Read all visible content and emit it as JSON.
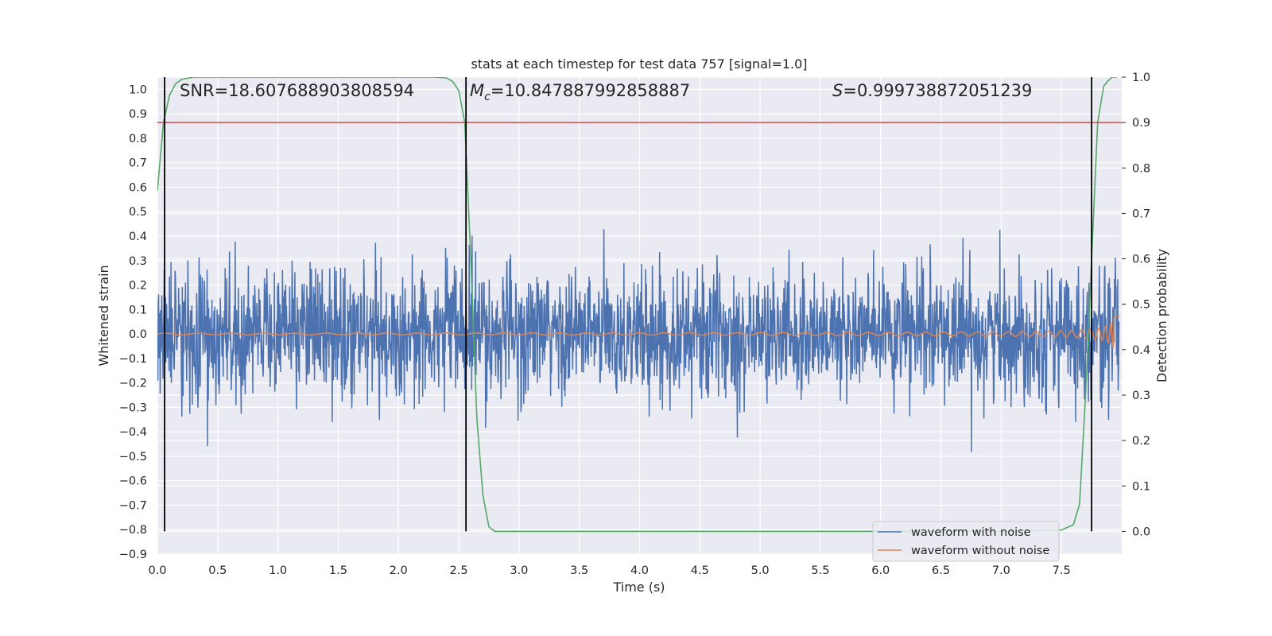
{
  "chart_data": {
    "type": "line",
    "title": "stats at each timestep for test data 757 [signal=1.0]",
    "xlabel": "Time (s)",
    "ylabel": "Whitened strain",
    "y2label": "Detection probability",
    "xlim": [
      0.0,
      8.0
    ],
    "ylim": [
      -0.9,
      1.05
    ],
    "y2lim": [
      -0.05,
      1.0
    ],
    "x_ticks": [
      "0.0",
      "0.5",
      "1.0",
      "1.5",
      "2.0",
      "2.5",
      "3.0",
      "3.5",
      "4.0",
      "4.5",
      "5.0",
      "5.5",
      "6.0",
      "6.5",
      "7.0",
      "7.5"
    ],
    "y_ticks": [
      "1.0",
      "0.9",
      "0.8",
      "0.7",
      "0.6",
      "0.5",
      "0.4",
      "0.3",
      "0.2",
      "0.1",
      "0.0",
      "−0.1",
      "−0.2",
      "−0.3",
      "−0.4",
      "−0.5",
      "−0.6",
      "−0.7",
      "−0.8",
      "−0.9"
    ],
    "y2_ticks": [
      "1.0",
      "0.9",
      "0.8",
      "0.7",
      "0.6",
      "0.5",
      "0.4",
      "0.3",
      "0.2",
      "0.1",
      "0.0"
    ],
    "grid": true,
    "legend_position": "lower-right",
    "annotations": {
      "snr": "SNR=18.607688903808594",
      "mc_symbol": "M",
      "mc_sub": "c",
      "mc_value": "=10.847887992858887",
      "s_symbol": "S",
      "s_value": "=0.999738872051239"
    },
    "series": [
      {
        "name": "waveform with noise",
        "color": "#4c72b0",
        "axis": "left",
        "style": "noise"
      },
      {
        "name": "waveform without noise",
        "color": "#dd8452",
        "axis": "left",
        "style": "chirp",
        "merger_time": 7.95
      },
      {
        "axis": "right",
        "color": "#55a868",
        "x": [
          0.0,
          0.05,
          0.1,
          0.15,
          0.2,
          0.3,
          0.4,
          0.6,
          1.0,
          1.5,
          2.0,
          2.3,
          2.4,
          2.45,
          2.5,
          2.55,
          2.6,
          2.65,
          2.7,
          2.75,
          2.8,
          3.0,
          3.5,
          4.0,
          5.0,
          6.0,
          7.0,
          7.5,
          7.6,
          7.65,
          7.7,
          7.75,
          7.8,
          7.85,
          7.88,
          7.92,
          7.96
        ],
        "y": [
          0.75,
          0.9,
          0.96,
          0.985,
          0.995,
          1.0,
          1.0,
          1.0,
          1.0,
          1.0,
          1.0,
          1.0,
          0.998,
          0.99,
          0.97,
          0.9,
          0.6,
          0.25,
          0.08,
          0.01,
          0.0,
          0.0,
          0.0,
          0.0,
          0.0,
          0.0,
          0.0,
          0.003,
          0.015,
          0.06,
          0.3,
          0.6,
          0.9,
          0.98,
          0.99,
          1.0,
          1.0
        ]
      },
      {
        "axis": "right",
        "color": "#c44e52",
        "type": "hline",
        "value": 0.9
      },
      {
        "color": "#000000",
        "type": "vlines",
        "x": [
          0.06,
          2.56,
          7.75
        ]
      }
    ],
    "legend": [
      "waveform with noise",
      "waveform without noise"
    ]
  }
}
